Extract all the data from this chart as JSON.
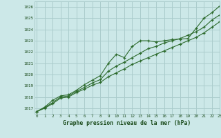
{
  "title": "Graphe pression niveau de la mer (hPa)",
  "bg_color": "#cce8e8",
  "grid_color": "#aacccc",
  "line_color": "#2d6b2d",
  "xlim": [
    -0.3,
    23
  ],
  "ylim": [
    1016.5,
    1026.5
  ],
  "yticks": [
    1017,
    1018,
    1019,
    1020,
    1021,
    1022,
    1023,
    1024,
    1025,
    1026
  ],
  "xticks": [
    0,
    1,
    2,
    3,
    4,
    5,
    6,
    7,
    8,
    9,
    10,
    11,
    12,
    13,
    14,
    15,
    16,
    17,
    18,
    19,
    20,
    21,
    22,
    23
  ],
  "series1": [
    1016.7,
    1017.1,
    1017.7,
    1018.1,
    1018.2,
    1018.6,
    1019.1,
    1019.5,
    1019.9,
    1021.0,
    1021.8,
    1021.5,
    1022.5,
    1023.0,
    1023.0,
    1022.9,
    1023.0,
    1023.1,
    1023.15,
    1023.2,
    1024.1,
    1025.0,
    1025.5,
    1026.1
  ],
  "series2": [
    1016.7,
    1017.05,
    1017.5,
    1018.0,
    1018.1,
    1018.5,
    1018.85,
    1019.25,
    1019.55,
    1020.3,
    1020.75,
    1021.1,
    1021.5,
    1021.9,
    1022.3,
    1022.5,
    1022.8,
    1023.0,
    1023.2,
    1023.5,
    1023.8,
    1024.2,
    1024.85,
    1025.3
  ],
  "series3": [
    1016.7,
    1017.0,
    1017.4,
    1017.9,
    1018.0,
    1018.4,
    1018.7,
    1019.05,
    1019.3,
    1019.8,
    1020.15,
    1020.5,
    1020.9,
    1021.2,
    1021.5,
    1021.8,
    1022.1,
    1022.4,
    1022.7,
    1023.0,
    1023.3,
    1023.7,
    1024.2,
    1024.7
  ]
}
